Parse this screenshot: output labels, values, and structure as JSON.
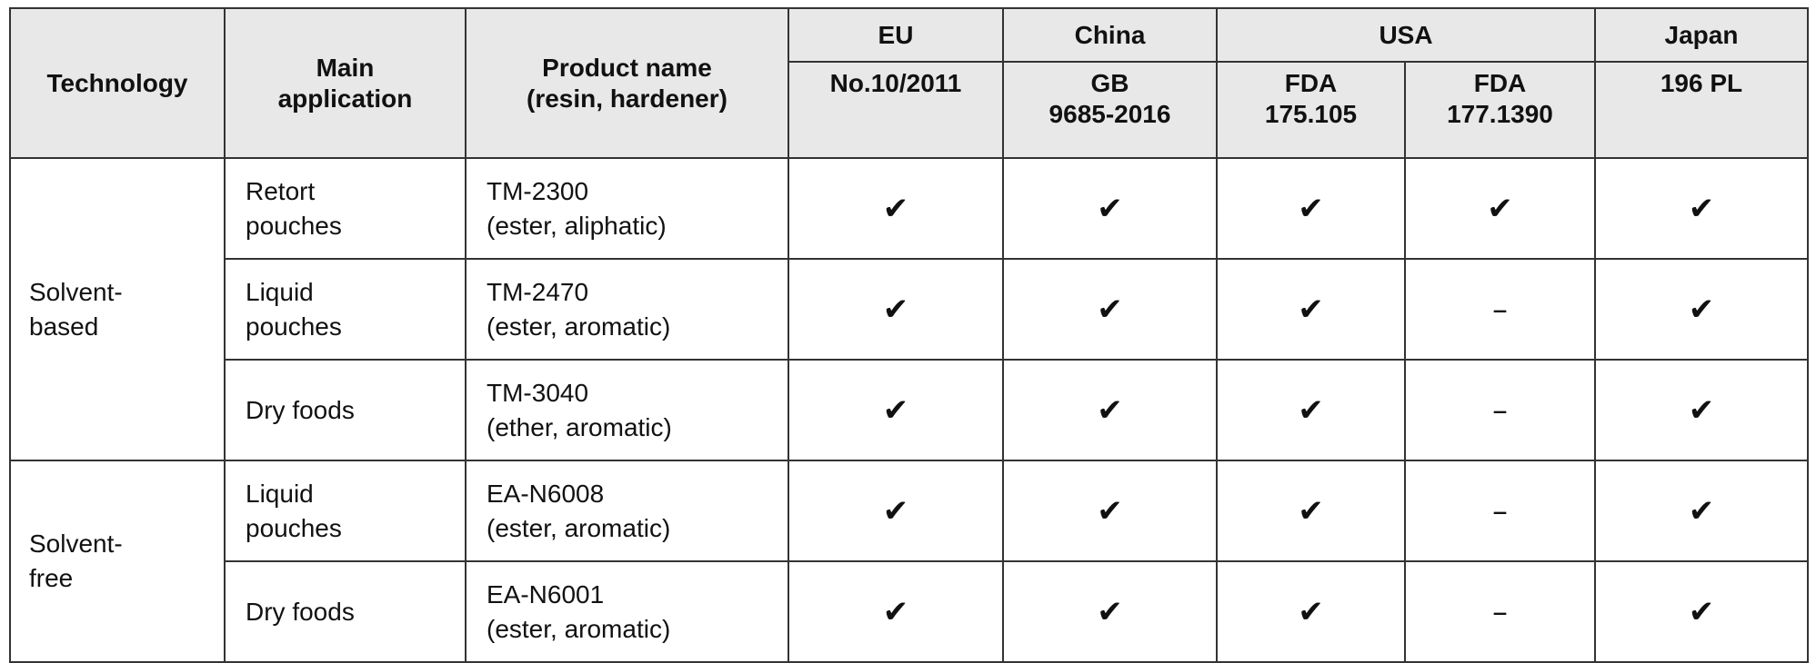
{
  "table": {
    "header_top": [
      {
        "lines": [
          "Technology"
        ]
      },
      {
        "lines": [
          "Main",
          "application"
        ]
      },
      {
        "lines": [
          "Product name",
          "(resin, hardener)"
        ]
      },
      {
        "lines": [
          "EU"
        ]
      },
      {
        "lines": [
          "China"
        ]
      },
      {
        "lines": [
          "USA"
        ]
      },
      {
        "lines": [
          "Japan"
        ]
      }
    ],
    "header_sub": [
      {
        "lines": [
          "No.10/2011"
        ]
      },
      {
        "lines": [
          "GB",
          "9685-2016"
        ]
      },
      {
        "lines": [
          "FDA",
          "175.105"
        ]
      },
      {
        "lines": [
          "FDA",
          "177.1390"
        ]
      },
      {
        "lines": [
          "196 PL"
        ]
      }
    ],
    "groups": [
      {
        "technology": [
          "Solvent-",
          "based"
        ],
        "rows": [
          {
            "application": [
              "Retort",
              "pouches"
            ],
            "product": [
              "TM-2300",
              "(ester, aliphatic)"
            ],
            "compliance": [
              "✔",
              "✔",
              "✔",
              "✔",
              "✔"
            ]
          },
          {
            "application": [
              "Liquid",
              "pouches"
            ],
            "product": [
              "TM-2470",
              "(ester, aromatic)"
            ],
            "compliance": [
              "✔",
              "✔",
              "✔",
              "–",
              "✔"
            ]
          },
          {
            "application": [
              "Dry foods"
            ],
            "product": [
              "TM-3040",
              "(ether, aromatic)"
            ],
            "compliance": [
              "✔",
              "✔",
              "✔",
              "–",
              "✔"
            ]
          }
        ]
      },
      {
        "technology": [
          "Solvent-",
          "free"
        ],
        "rows": [
          {
            "application": [
              "Liquid",
              "pouches"
            ],
            "product": [
              "EA-N6008",
              "(ester, aromatic)"
            ],
            "compliance": [
              "✔",
              "✔",
              "✔",
              "–",
              "✔"
            ]
          },
          {
            "application": [
              "Dry foods"
            ],
            "product": [
              "EA-N6001",
              "(ester, aromatic)"
            ],
            "compliance": [
              "✔",
              "✔",
              "✔",
              "–",
              "✔"
            ]
          }
        ]
      }
    ]
  }
}
